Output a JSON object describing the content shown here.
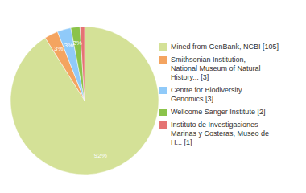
{
  "chart_data": {
    "type": "pie",
    "categories": [
      "Mined from GenBank, NCBI [105]",
      "Smithsonian Institution,\nNational Museum of Natural\nHistory... [3]",
      "Centre for Biodiversity\nGenomics [3]",
      "Wellcome Sanger Institute [2]",
      "Instituto de Investigaciones\nMarinas y Costeras, Museo de\nH... [1]"
    ],
    "values": [
      92,
      3,
      3,
      2,
      1
    ],
    "value_labels": [
      "92%",
      "3%",
      "3%",
      "2%",
      null
    ],
    "colors": [
      "#d4e197",
      "#f4a460",
      "#90caf9",
      "#8bc34a",
      "#e57373"
    ],
    "legend": "right",
    "data_labels": true
  }
}
